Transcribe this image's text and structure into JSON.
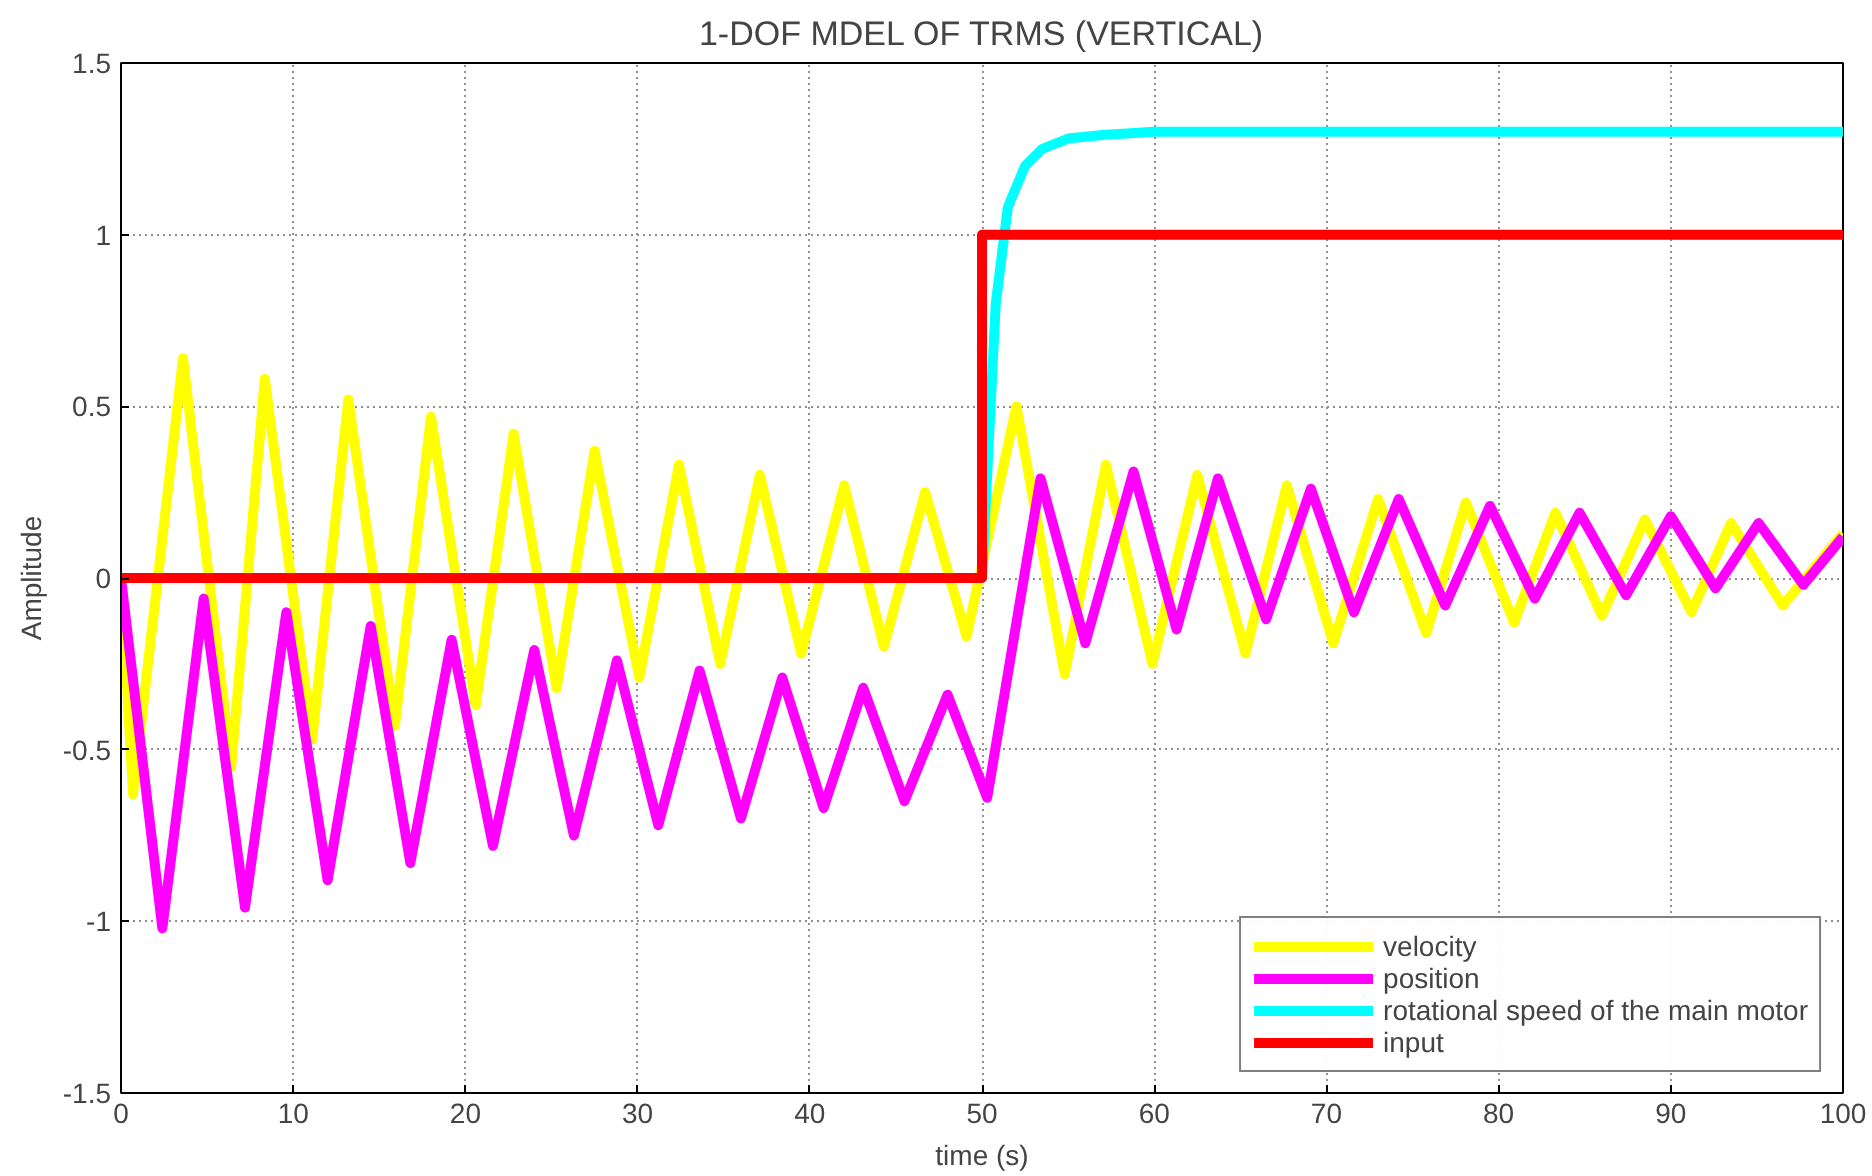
{
  "chart_data": {
    "type": "line",
    "title": "1-DOF MDEL OF TRMS (VERTICAL)",
    "xlabel": "time (s)",
    "ylabel": "Amplitude",
    "xlim": [
      0,
      100
    ],
    "xticks": [
      0,
      10,
      20,
      30,
      40,
      50,
      60,
      70,
      80,
      90,
      100
    ],
    "ylim": [
      -1.5,
      1.5
    ],
    "yticks": [
      -1.5,
      -1,
      -0.5,
      0,
      0.5,
      1,
      1.5
    ],
    "grid": true,
    "legend": "bottom right",
    "line_style": "solid",
    "series": [
      {
        "name": "velocity",
        "color": "#ffff00",
        "x": [
          0,
          0.7,
          3.6,
          6.4,
          8.35,
          11.1,
          13.2,
          15.9,
          18.0,
          20.6,
          22.8,
          25.3,
          27.5,
          30.1,
          32.4,
          34.8,
          37.1,
          39.5,
          42.0,
          44.3,
          46.7,
          49.1,
          52.0,
          54.8,
          57.2,
          59.9,
          62.5,
          65.3,
          67.7,
          70.4,
          73.0,
          75.8,
          78.1,
          80.9,
          83.3,
          86.0,
          88.5,
          91.2,
          93.5,
          96.5,
          100
        ],
        "values": [
          0,
          -0.63,
          0.64,
          -0.55,
          0.58,
          -0.47,
          0.52,
          -0.43,
          0.47,
          -0.37,
          0.42,
          -0.32,
          0.37,
          -0.29,
          0.33,
          -0.25,
          0.3,
          -0.22,
          0.27,
          -0.2,
          0.25,
          -0.17,
          0.5,
          -0.28,
          0.33,
          -0.25,
          0.3,
          -0.22,
          0.27,
          -0.19,
          0.23,
          -0.16,
          0.22,
          -0.13,
          0.19,
          -0.11,
          0.17,
          -0.1,
          0.16,
          -0.08,
          0.13
        ]
      },
      {
        "name": "position",
        "color": "#ff00ff",
        "x": [
          0,
          2.4,
          4.8,
          7.2,
          9.6,
          12.0,
          14.5,
          16.8,
          19.2,
          21.6,
          24.0,
          26.3,
          28.8,
          31.2,
          33.6,
          36.0,
          38.4,
          40.8,
          43.1,
          45.5,
          48.0,
          50.3,
          53.4,
          56.0,
          58.8,
          61.3,
          63.7,
          66.5,
          69.1,
          71.6,
          74.2,
          76.9,
          79.5,
          82.1,
          84.7,
          87.4,
          90.0,
          92.6,
          95.1,
          97.7,
          100
        ],
        "values": [
          0,
          -1.02,
          -0.06,
          -0.96,
          -0.1,
          -0.88,
          -0.14,
          -0.83,
          -0.18,
          -0.78,
          -0.21,
          -0.75,
          -0.24,
          -0.72,
          -0.27,
          -0.7,
          -0.29,
          -0.67,
          -0.32,
          -0.65,
          -0.34,
          -0.64,
          0.29,
          -0.19,
          0.31,
          -0.15,
          0.29,
          -0.12,
          0.26,
          -0.1,
          0.23,
          -0.08,
          0.21,
          -0.06,
          0.19,
          -0.05,
          0.18,
          -0.03,
          0.16,
          -0.02,
          0.12
        ]
      },
      {
        "name": "rotational speed of the main motor",
        "color": "#00ffff",
        "x": [
          50,
          50.4,
          50.8,
          51.5,
          52.5,
          53.5,
          55,
          57,
          60,
          100
        ],
        "values": [
          0,
          0.4,
          0.8,
          1.08,
          1.2,
          1.25,
          1.28,
          1.29,
          1.3,
          1.3
        ]
      },
      {
        "name": "input",
        "color": "#ff0000",
        "x": [
          0,
          50,
          50,
          100
        ],
        "values": [
          0,
          0,
          1,
          1
        ]
      }
    ]
  }
}
